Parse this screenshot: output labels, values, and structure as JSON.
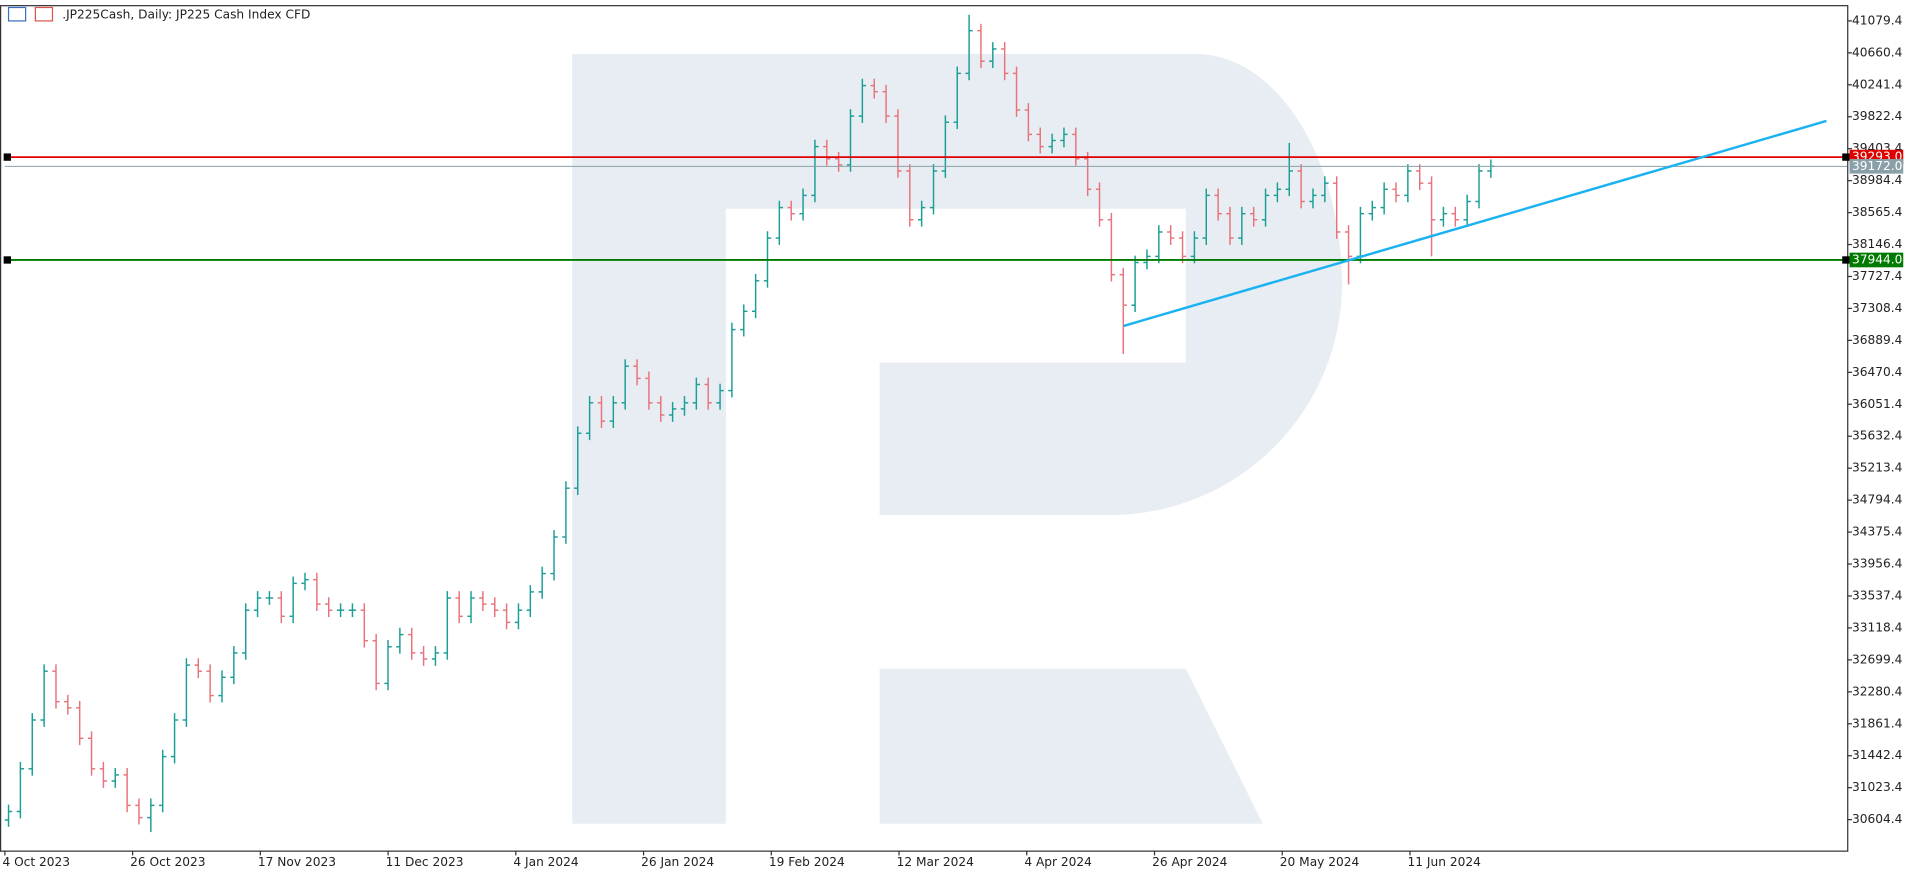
{
  "chart_data": {
    "type": "ohlc",
    "title": ".JP225Cash, Daily:  JP225 Cash Index CFD",
    "up_color": "#1a9e96",
    "down_color": "#e8737a",
    "grid": false,
    "ylim": [
      30199,
      41287
    ],
    "yticks": [
      41079.4,
      40660.4,
      40241.4,
      39822.4,
      39403.4,
      38984.4,
      38565.4,
      38146.4,
      37727.4,
      37308.4,
      36889.4,
      36470.4,
      36051.4,
      35632.4,
      35213.4,
      34794.4,
      34375.4,
      33956.4,
      33537.4,
      33118.4,
      32699.4,
      32280.4,
      31861.4,
      31442.4,
      31023.4,
      30604.4
    ],
    "categories": [
      "4 Oct 2023",
      "26 Oct 2023",
      "17 Nov 2023",
      "11 Dec 2023",
      "4 Jan 2024",
      "26 Jan 2024",
      "19 Feb 2024",
      "12 Mar 2024",
      "4 Apr 2024",
      "26 Apr 2024",
      "20 May 2024",
      "11 Jun 2024"
    ],
    "levels": [
      {
        "value": 39293,
        "label": "39293.0",
        "color": "#e00000"
      },
      {
        "value": 39172,
        "label": "39172.0",
        "color": "#8aa0a8"
      },
      {
        "value": 37944,
        "label": "37944.0",
        "color": "#007a00"
      }
    ],
    "trendline": {
      "values": [
        37079,
        39767
      ],
      "color": "#1ab2f0"
    },
    "ohlc": [
      [
        30600,
        30801,
        30510,
        30711
      ],
      [
        30711,
        31361,
        30621,
        31271
      ],
      [
        31271,
        32001,
        31181,
        31911
      ],
      [
        31911,
        32641,
        31821,
        32551
      ],
      [
        32551,
        32641,
        32061,
        32151
      ],
      [
        32151,
        32241,
        31981,
        32071
      ],
      [
        32071,
        32161,
        31581,
        31671
      ],
      [
        31671,
        31761,
        31181,
        31271
      ],
      [
        31271,
        31361,
        31021,
        31111
      ],
      [
        31111,
        31281,
        31021,
        31191
      ],
      [
        31191,
        31281,
        30701,
        30791
      ],
      [
        30791,
        30881,
        30541,
        30631
      ],
      [
        30631,
        30881,
        30441,
        30791
      ],
      [
        30791,
        31521,
        30701,
        31431
      ],
      [
        31431,
        32001,
        31341,
        31911
      ],
      [
        31911,
        32721,
        31821,
        32631
      ],
      [
        32631,
        32721,
        32461,
        32551
      ],
      [
        32551,
        32641,
        32141,
        32231
      ],
      [
        32231,
        32561,
        32141,
        32471
      ],
      [
        32471,
        32881,
        32381,
        32791
      ],
      [
        32791,
        33441,
        32701,
        33351
      ],
      [
        33351,
        33601,
        33261,
        33511
      ],
      [
        33511,
        33601,
        33421,
        33511
      ],
      [
        33511,
        33601,
        33181,
        33271
      ],
      [
        33271,
        33793,
        33181,
        33703
      ],
      [
        33703,
        33841,
        33613,
        33751
      ],
      [
        33751,
        33841,
        33341,
        33431
      ],
      [
        33431,
        33521,
        33261,
        33351
      ],
      [
        33351,
        33441,
        33261,
        33351
      ],
      [
        33351,
        33441,
        33261,
        33351
      ],
      [
        33351,
        33441,
        32861,
        32951
      ],
      [
        32951,
        33041,
        32301,
        32391
      ],
      [
        32391,
        32961,
        32301,
        32871
      ],
      [
        32871,
        33121,
        32781,
        33031
      ],
      [
        33031,
        33121,
        32701,
        32791
      ],
      [
        32791,
        32881,
        32621,
        32711
      ],
      [
        32711,
        32881,
        32621,
        32791
      ],
      [
        32791,
        33601,
        32701,
        33511
      ],
      [
        33511,
        33601,
        33181,
        33271
      ],
      [
        33271,
        33601,
        33181,
        33511
      ],
      [
        33511,
        33601,
        33341,
        33431
      ],
      [
        33431,
        33521,
        33261,
        33351
      ],
      [
        33351,
        33441,
        33101,
        33191
      ],
      [
        33191,
        33441,
        33101,
        33351
      ],
      [
        33351,
        33681,
        33261,
        33591
      ],
      [
        33591,
        33921,
        33501,
        33831
      ],
      [
        33831,
        34401,
        33741,
        34311
      ],
      [
        34311,
        35041,
        34221,
        34951
      ],
      [
        34951,
        35761,
        34861,
        35671
      ],
      [
        35671,
        36161,
        35581,
        36071
      ],
      [
        36071,
        36161,
        35741,
        35831
      ],
      [
        35831,
        36161,
        35741,
        36071
      ],
      [
        36071,
        36641,
        35981,
        36551
      ],
      [
        36551,
        36641,
        36301,
        36391
      ],
      [
        36391,
        36481,
        35981,
        36071
      ],
      [
        36071,
        36161,
        35821,
        35911
      ],
      [
        35911,
        36081,
        35821,
        35991
      ],
      [
        35991,
        36161,
        35901,
        36071
      ],
      [
        36071,
        36401,
        35981,
        36311
      ],
      [
        36311,
        36401,
        35981,
        36071
      ],
      [
        36071,
        36321,
        35981,
        36231
      ],
      [
        36231,
        37121,
        36141,
        37031
      ],
      [
        37031,
        37361,
        36941,
        37271
      ],
      [
        37271,
        37761,
        37181,
        37671
      ],
      [
        37671,
        38321,
        37581,
        38231
      ],
      [
        38231,
        38721,
        38141,
        38631
      ],
      [
        38631,
        38721,
        38461,
        38551
      ],
      [
        38551,
        38881,
        38461,
        38791
      ],
      [
        38791,
        39521,
        38701,
        39431
      ],
      [
        39431,
        39521,
        39181,
        39271
      ],
      [
        39271,
        39361,
        39101,
        39191
      ],
      [
        39191,
        39921,
        39101,
        39831
      ],
      [
        39831,
        40321,
        39741,
        40231
      ],
      [
        40231,
        40321,
        40061,
        40151
      ],
      [
        40151,
        40241,
        39741,
        39831
      ],
      [
        39831,
        39921,
        39021,
        39111
      ],
      [
        39111,
        39201,
        38381,
        38471
      ],
      [
        38471,
        38721,
        38381,
        38631
      ],
      [
        38631,
        39201,
        38541,
        39111
      ],
      [
        39111,
        39841,
        39021,
        39751
      ],
      [
        39751,
        40481,
        39661,
        40391
      ],
      [
        40391,
        41160,
        40301,
        40951
      ],
      [
        40951,
        41041,
        40461,
        40551
      ],
      [
        40551,
        40801,
        40461,
        40711
      ],
      [
        40711,
        40801,
        40301,
        40391
      ],
      [
        40391,
        40481,
        39821,
        39911
      ],
      [
        39911,
        40001,
        39501,
        39591
      ],
      [
        39591,
        39681,
        39341,
        39431
      ],
      [
        39431,
        39601,
        39341,
        39511
      ],
      [
        39511,
        39681,
        39421,
        39591
      ],
      [
        39591,
        39681,
        39181,
        39271
      ],
      [
        39271,
        39361,
        38781,
        38871
      ],
      [
        38871,
        38961,
        38381,
        38471
      ],
      [
        38471,
        38561,
        37661,
        37751
      ],
      [
        37751,
        37841,
        36711,
        37351
      ],
      [
        37351,
        38001,
        37261,
        37911
      ],
      [
        37911,
        38081,
        37821,
        37991
      ],
      [
        37991,
        38401,
        37901,
        38311
      ],
      [
        38311,
        38401,
        38141,
        38231
      ],
      [
        38231,
        38321,
        37901,
        37991
      ],
      [
        37991,
        38321,
        37901,
        38231
      ],
      [
        38231,
        38881,
        38141,
        38791
      ],
      [
        38791,
        38881,
        38461,
        38551
      ],
      [
        38551,
        38641,
        38141,
        38231
      ],
      [
        38231,
        38641,
        38141,
        38551
      ],
      [
        38551,
        38641,
        38381,
        38471
      ],
      [
        38471,
        38881,
        38381,
        38791
      ],
      [
        38791,
        38961,
        38701,
        38871
      ],
      [
        38871,
        39479,
        38781,
        39111
      ],
      [
        39111,
        39201,
        38621,
        38711
      ],
      [
        38711,
        38881,
        38621,
        38791
      ],
      [
        38791,
        39041,
        38701,
        38951
      ],
      [
        38951,
        39041,
        38221,
        38311
      ],
      [
        38311,
        38401,
        37623,
        37991
      ],
      [
        37991,
        38641,
        37901,
        38551
      ],
      [
        38551,
        38721,
        38461,
        38631
      ],
      [
        38631,
        38961,
        38541,
        38871
      ],
      [
        38871,
        38961,
        38701,
        38791
      ],
      [
        38791,
        39201,
        38701,
        39111
      ],
      [
        39111,
        39201,
        38861,
        38951
      ],
      [
        38951,
        39041,
        37991,
        38471
      ],
      [
        38471,
        38641,
        38381,
        38551
      ],
      [
        38551,
        38641,
        38381,
        38471
      ],
      [
        38471,
        38801,
        38381,
        38711
      ],
      [
        38711,
        39201,
        38621,
        39111
      ],
      [
        39111,
        39262,
        39021,
        39172
      ]
    ]
  }
}
